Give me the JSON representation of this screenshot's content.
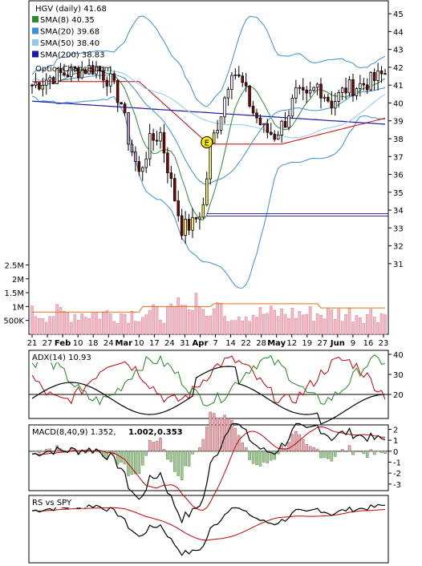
{
  "chart_data": [
    {
      "type": "candlestick",
      "panel": "price",
      "title": "HGV (daily) 41.68",
      "watermark": "OptionChance.com",
      "legend": [
        {
          "label": "SMA(8) 40.35",
          "color": "#2e8b2e"
        },
        {
          "label": "SMA(20) 39.68",
          "color": "#3d8fd6"
        },
        {
          "label": "SMA(50) 38.40",
          "color": "#8ec9ee"
        },
        {
          "label": "SMA(200) 38.83",
          "color": "#1a1aa8"
        }
      ],
      "legend_placement": "top-left",
      "y_ticks": [
        31,
        32,
        33,
        34,
        35,
        36,
        37,
        38,
        39,
        40,
        41,
        42,
        43,
        44,
        45
      ],
      "ylim": [
        30,
        46
      ],
      "event_marker": {
        "label": "E",
        "index": 49,
        "value": 37.8
      },
      "support_level": 33.8,
      "start_close": 41.0,
      "bars": 100,
      "colors": {
        "up": "#ffffff",
        "down": "#8b0000",
        "highlight_up": "#ffff66",
        "highlight_down": "#cc99cc",
        "bb_upper": "#3d8fd6",
        "bb_lower": "#3d8fd6",
        "ema": "#cc0000"
      }
    },
    {
      "type": "bar",
      "panel": "volume",
      "y_tick_labels": [
        "2.5M",
        "2M",
        "1.5M",
        "1M",
        "500K"
      ],
      "y_tick_values": [
        2500000,
        2000000,
        1500000,
        1000000,
        500000
      ],
      "ylim": [
        0,
        2600000
      ],
      "x_tick_labels": [
        "21",
        "27",
        "Feb",
        "10",
        "18",
        "24",
        "Mar",
        "10",
        "17",
        "24",
        "31",
        "Apr",
        "7",
        "14",
        "22",
        "28",
        "May",
        "12",
        "19",
        "27",
        "Jun",
        "9",
        "16",
        "23"
      ],
      "x_tick_bold": [
        "Feb",
        "Mar",
        "Apr",
        "May",
        "Jun"
      ],
      "avg_color": "#e07020",
      "bar_color": "#f4b8c4"
    },
    {
      "type": "line",
      "panel": "adx",
      "label": "ADX(14) 10.93",
      "y_ticks": [
        20,
        30,
        40
      ],
      "ylim": [
        8,
        42
      ],
      "series_colors": [
        "#000000",
        "#1e8a1e",
        "#cc0000"
      ]
    },
    {
      "type": "line",
      "panel": "macd",
      "label": "MACD(8,40,9) 1.352,",
      "signal_value": "1.002,",
      "histogram_value": "0.353",
      "signal_color": "#cc0000",
      "hist_value_color": "#2255cc",
      "y_ticks": [
        2,
        1,
        0,
        -1,
        -2,
        -3
      ],
      "ylim": [
        -3.6,
        2.4
      ]
    },
    {
      "type": "line",
      "panel": "rs",
      "label": "RS vs SPY",
      "series_colors": [
        "#000000",
        "#cc0000"
      ]
    }
  ]
}
